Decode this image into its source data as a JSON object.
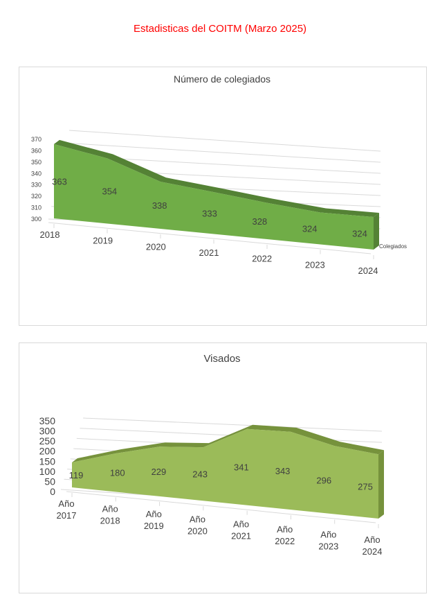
{
  "page_title": "Estadisticas del COITM  (Marzo 2025)",
  "chart_data": [
    {
      "type": "area",
      "title": "Número de colegiados",
      "categories": [
        "2018",
        "2019",
        "2020",
        "2021",
        "2022",
        "2023",
        "2024"
      ],
      "series": [
        {
          "name": "Colegiados",
          "values": [
            363,
            354,
            338,
            333,
            328,
            324,
            324
          ]
        }
      ],
      "yticks": [
        "300",
        "310",
        "320",
        "330",
        "340",
        "350",
        "360",
        "370"
      ],
      "ylim": [
        300,
        370
      ],
      "legend": "Colegiados",
      "color": "#70AD47",
      "top_color": "#548235"
    },
    {
      "type": "area",
      "title": "Visados",
      "categories": [
        "Año 2017",
        "Año 2018",
        "Año 2019",
        "Año 2020",
        "Año 2021",
        "Año 2022",
        "Año 2023",
        "Año 2024"
      ],
      "series": [
        {
          "name": "Visados",
          "values": [
            119,
            180,
            229,
            243,
            341,
            343,
            296,
            275
          ]
        }
      ],
      "yticks": [
        "0",
        "50",
        "100",
        "150",
        "200",
        "250",
        "300",
        "350"
      ],
      "ylim": [
        0,
        350
      ],
      "color": "#9BBB59",
      "top_color": "#76923C"
    }
  ]
}
